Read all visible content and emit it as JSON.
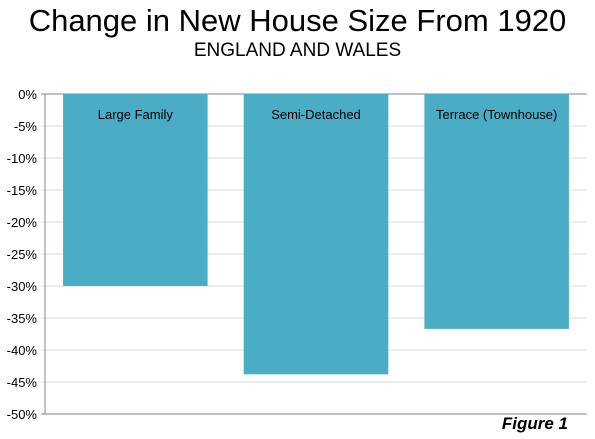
{
  "chart_data": {
    "type": "bar",
    "title": "Change in New House Size From 1920",
    "subtitle": "ENGLAND AND WALES",
    "categories": [
      "Large Family",
      "Semi-Detached",
      "Terrace (Townhouse)"
    ],
    "values": [
      -30,
      -43.8,
      -36.7
    ],
    "ylim": [
      -50,
      0
    ],
    "yticks": [
      0,
      -5,
      -10,
      -15,
      -20,
      -25,
      -30,
      -35,
      -40,
      -45,
      -50
    ],
    "ytick_labels": [
      "0%",
      "-5%",
      "-10%",
      "-15%",
      "-20%",
      "-25%",
      "-30%",
      "-35%",
      "-40%",
      "-45%",
      "-50%"
    ],
    "grid": true,
    "bar_color": "#4bacc6",
    "grid_color": "#d9d9d9",
    "axis_color": "#868686",
    "figure_label": "Figure 1"
  }
}
